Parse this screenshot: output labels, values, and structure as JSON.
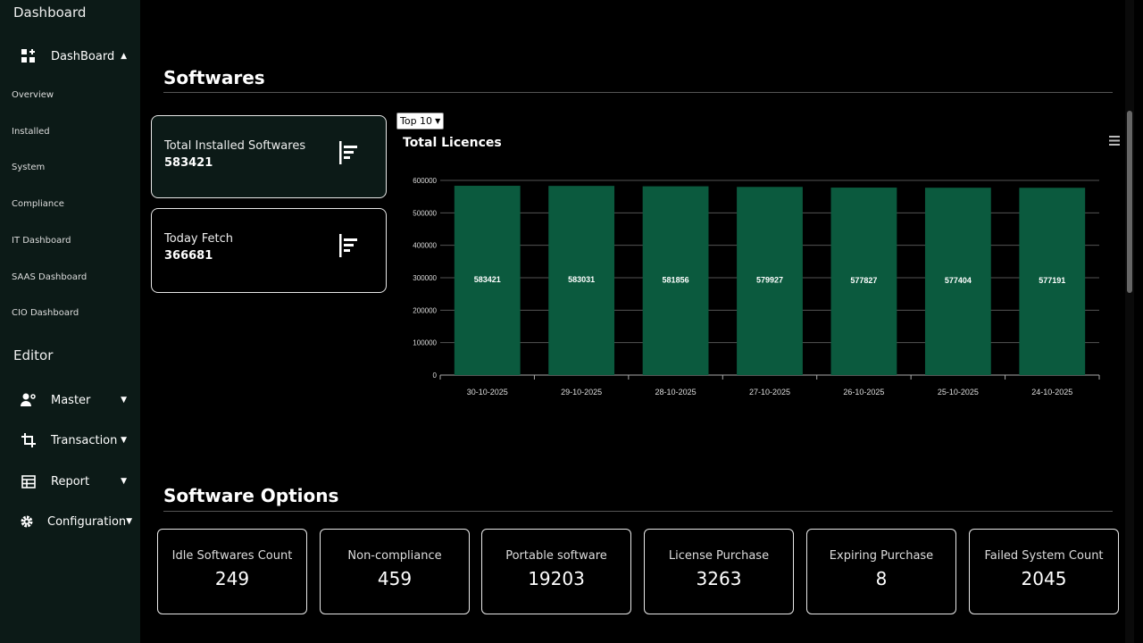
{
  "sidebar": {
    "dashboard_heading": "Dashboard",
    "dashboard_group": "DashBoard",
    "items": [
      "Overview",
      "Installed",
      "System",
      "Compliance",
      "IT Dashboard",
      "SAAS Dashboard",
      "CIO Dashboard"
    ],
    "editor_heading": "Editor",
    "editor_groups": [
      "Master",
      "Transaction",
      "Report",
      "Configuration"
    ]
  },
  "softwares": {
    "title": "Softwares",
    "cards": [
      {
        "title": "Total Installed Softwares",
        "value": "583421"
      },
      {
        "title": "Today Fetch",
        "value": "366681"
      }
    ],
    "select_value": "Top 10"
  },
  "chart_data": {
    "type": "bar",
    "title": "Total Licences",
    "categories": [
      "30-10-2025",
      "29-10-2025",
      "28-10-2025",
      "27-10-2025",
      "26-10-2025",
      "25-10-2025",
      "24-10-2025"
    ],
    "values": [
      583421,
      583031,
      581856,
      579927,
      577827,
      577404,
      577191
    ],
    "ylim": [
      0,
      600000
    ],
    "yticks": [
      "0",
      "100000",
      "200000",
      "300000",
      "400000",
      "500000",
      "600000"
    ],
    "bar_color": "#0b5a3e",
    "grid": true
  },
  "options": {
    "title": "Software Options",
    "cards": [
      {
        "title": "Idle Softwares Count",
        "value": "249"
      },
      {
        "title": "Non-compliance",
        "value": "459"
      },
      {
        "title": "Portable software",
        "value": "19203"
      },
      {
        "title": "License Purchase",
        "value": "3263"
      },
      {
        "title": "Expiring Purchase",
        "value": "8"
      },
      {
        "title": "Failed System Count",
        "value": "2045"
      }
    ]
  }
}
